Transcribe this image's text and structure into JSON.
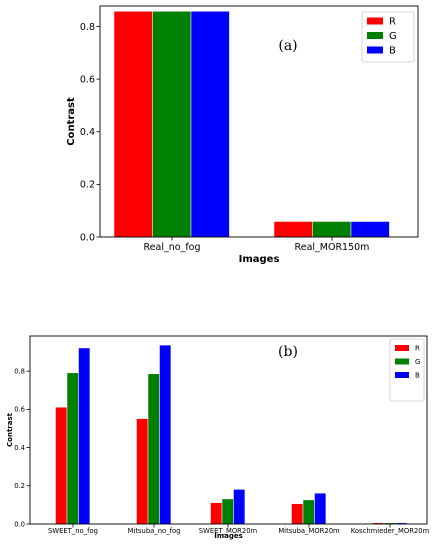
{
  "chart_data": [
    {
      "type": "bar",
      "panel_label": "(a)",
      "xlabel": "Images",
      "ylabel": "Contrast",
      "categories": [
        "Real_no_fog",
        "Real_MOR150m"
      ],
      "series": [
        {
          "name": "R",
          "color": "#ff0000",
          "values": [
            0.857,
            0.058
          ]
        },
        {
          "name": "G",
          "color": "#008000",
          "values": [
            0.857,
            0.058
          ]
        },
        {
          "name": "B",
          "color": "#0000ff",
          "values": [
            0.857,
            0.058
          ]
        }
      ],
      "ylim": [
        0,
        0.878
      ],
      "yticks": [
        "0.0",
        "0.2",
        "0.4",
        "0.6",
        "0.8"
      ],
      "grid": false,
      "legend": "top-right"
    },
    {
      "type": "bar",
      "panel_label": "(b)",
      "xlabel": "Images",
      "ylabel": "Contrast",
      "categories": [
        "SWEET_no_fog",
        "Mitsuba_no_fog",
        "SWEET_MOR20m",
        "Mitsuba_MOR20m",
        "Koschmieder_MOR20m"
      ],
      "series": [
        {
          "name": "R",
          "color": "#ff0000",
          "values": [
            0.61,
            0.55,
            0.11,
            0.105,
            0.005
          ]
        },
        {
          "name": "G",
          "color": "#008000",
          "values": [
            0.79,
            0.785,
            0.13,
            0.125,
            0.005
          ]
        },
        {
          "name": "B",
          "color": "#0000ff",
          "values": [
            0.92,
            0.935,
            0.18,
            0.16,
            0.005
          ]
        }
      ],
      "ylim": [
        0,
        0.984
      ],
      "yticks": [
        "0.0",
        "0.2",
        "0.4",
        "0.6",
        "0.8"
      ],
      "grid": false,
      "legend": "top-right"
    }
  ]
}
